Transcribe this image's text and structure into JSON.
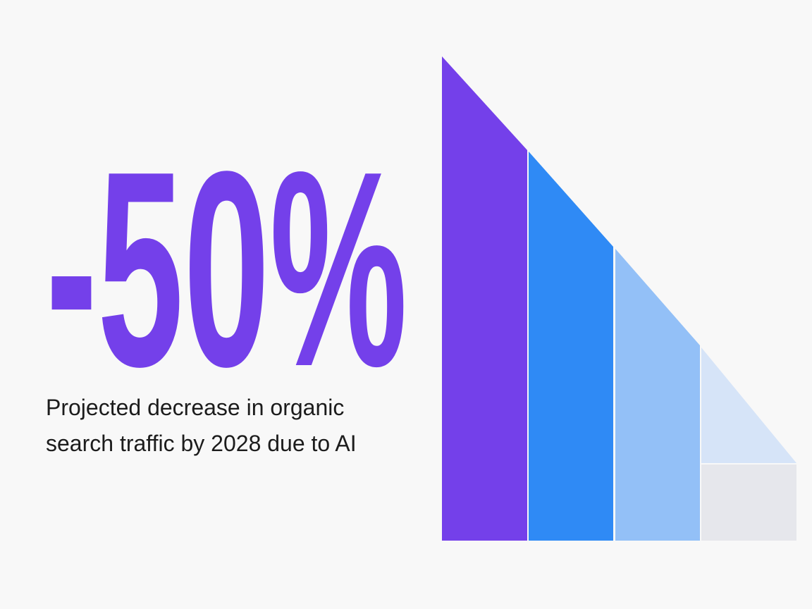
{
  "headline": "-50%",
  "caption": {
    "lines": [
      "Projected decrease in organic",
      "search traffic by 2028 due to AI"
    ]
  }
}
